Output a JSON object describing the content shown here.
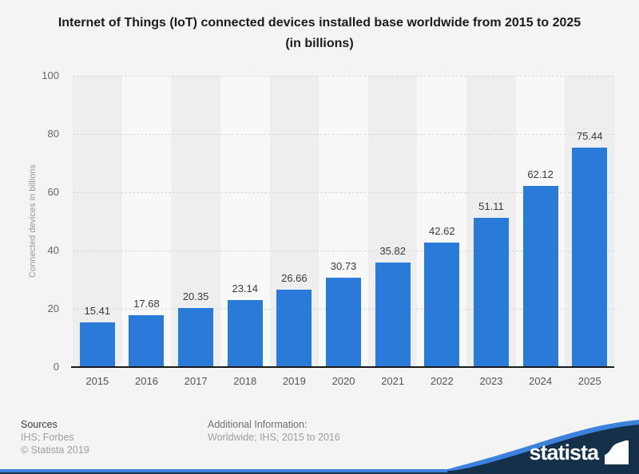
{
  "chart_data": {
    "type": "bar",
    "title": "Internet of Things (IoT) connected devices installed base worldwide from 2015 to 2025",
    "subtitle": "(in billions)",
    "categories": [
      "2015",
      "2016",
      "2017",
      "2018",
      "2019",
      "2020",
      "2021",
      "2022",
      "2023",
      "2024",
      "2025"
    ],
    "values": [
      15.41,
      17.68,
      20.35,
      23.14,
      26.66,
      30.73,
      35.82,
      42.62,
      51.11,
      62.12,
      75.44
    ],
    "xlabel": "",
    "ylabel": "Connected devices in billions",
    "ylim": [
      0,
      100
    ],
    "yticks": [
      0,
      20,
      40,
      60,
      80,
      100
    ],
    "grid": true,
    "legend": "none",
    "bar_color": "#2a7ad9",
    "band_color_dark": "#eeeeee",
    "band_color_light": "#f8f8f8"
  },
  "footer": {
    "sources_label": "Sources",
    "sources_value": "IHS; Forbes",
    "copyright": "© Statista 2019",
    "additional_label": "Additional Information:",
    "additional_value": "Worldwide; IHS; 2015 to 2016"
  },
  "brand": {
    "logo_text": "statista",
    "navy": "#15314a",
    "blue": "#3b82dd"
  }
}
